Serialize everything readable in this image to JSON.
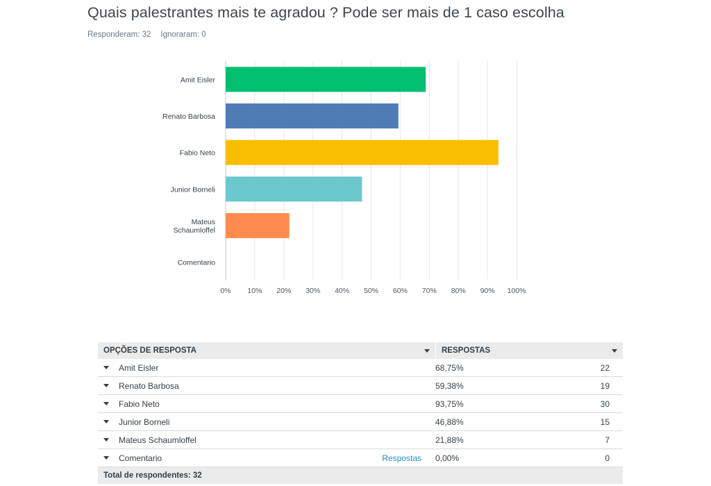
{
  "question": {
    "title": "Quais palestrantes mais te agradou ? Pode ser mais de 1 caso escolha",
    "answered": "Responderam: 32",
    "skipped": "Ignoraram: 0"
  },
  "chart_data": {
    "type": "bar",
    "orientation": "horizontal",
    "categories": [
      "Amit Eisler",
      "Renato Barbosa",
      "Fabio Neto",
      "Junior Borneli",
      "Mateus Schaumloffel",
      "Comentario"
    ],
    "values": [
      68.75,
      59.38,
      93.75,
      46.88,
      21.88,
      0
    ],
    "colors": [
      "#00bf6f",
      "#507cb6",
      "#f9be00",
      "#6bc8cd",
      "#ff8b4f",
      "#9d5ce5"
    ],
    "xlim": [
      0,
      100
    ],
    "xticks": [
      "0%",
      "10%",
      "20%",
      "30%",
      "40%",
      "50%",
      "60%",
      "70%",
      "80%",
      "90%",
      "100%"
    ],
    "grid": true,
    "title": "",
    "xlabel": "",
    "ylabel": ""
  },
  "table": {
    "headers": {
      "option": "OPÇÕES DE RESPOSTA",
      "responses": "RESPOSTAS"
    },
    "rows": [
      {
        "label": "Amit Eisler",
        "pct": "68,75%",
        "count": "22"
      },
      {
        "label": "Renato Barbosa",
        "pct": "59,38%",
        "count": "19"
      },
      {
        "label": "Fabio Neto",
        "pct": "93,75%",
        "count": "30"
      },
      {
        "label": "Junior Borneli",
        "pct": "46,88%",
        "count": "15"
      },
      {
        "label": "Mateus Schaumloffel",
        "pct": "21,88%",
        "count": "7"
      },
      {
        "label": "Comentario",
        "pct": "0,00%",
        "count": "0",
        "link": "Respostas"
      }
    ],
    "footer": "Total de respondentes: 32"
  }
}
